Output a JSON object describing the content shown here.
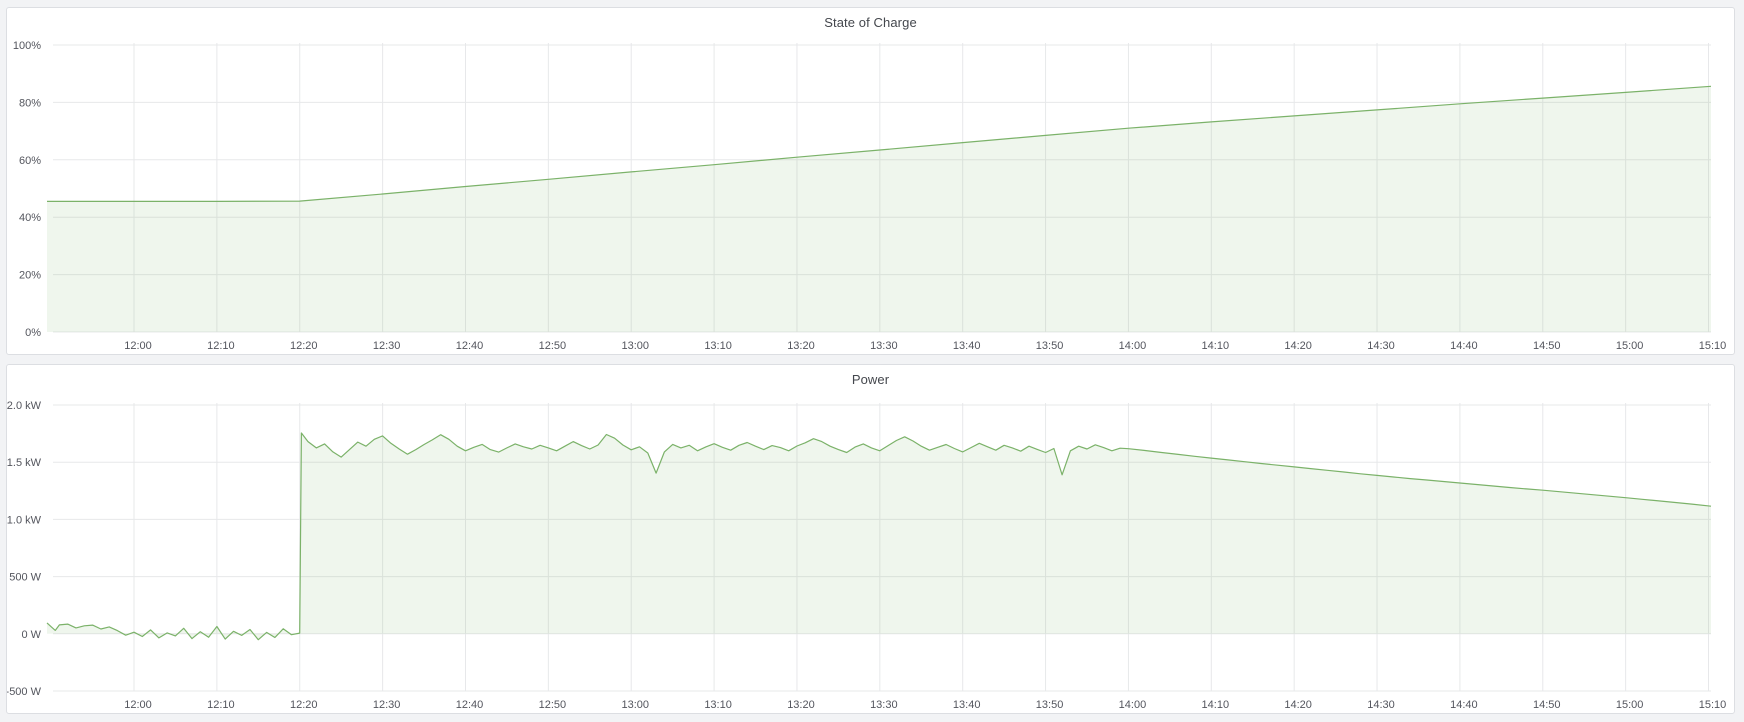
{
  "page": {
    "background_color": "#f2f3f5",
    "panel_background": "#ffffff",
    "panel_border_color": "#dcdee2",
    "grid_color": "#e7e8ea",
    "tick_label_color": "#53555d",
    "title_color": "#44474d",
    "series_line_color": "#7bb269",
    "series_fill_color": "rgba(126,178,109,0.12)"
  },
  "panels": [
    {
      "title": "State of Charge"
    },
    {
      "title": "Power"
    }
  ],
  "chart_data": [
    {
      "type": "area",
      "title": "State of Charge",
      "xlabel": "",
      "ylabel": "",
      "legend": "none",
      "grid": true,
      "ylim": [
        0,
        100
      ],
      "x_range_minutes": [
        709.5,
        910.3
      ],
      "x_ticks": [
        {
          "m": 720,
          "label": "12:00"
        },
        {
          "m": 730,
          "label": "12:10"
        },
        {
          "m": 740,
          "label": "12:20"
        },
        {
          "m": 750,
          "label": "12:30"
        },
        {
          "m": 760,
          "label": "12:40"
        },
        {
          "m": 770,
          "label": "12:50"
        },
        {
          "m": 780,
          "label": "13:00"
        },
        {
          "m": 790,
          "label": "13:10"
        },
        {
          "m": 800,
          "label": "13:20"
        },
        {
          "m": 810,
          "label": "13:30"
        },
        {
          "m": 820,
          "label": "13:40"
        },
        {
          "m": 830,
          "label": "13:50"
        },
        {
          "m": 840,
          "label": "14:00"
        },
        {
          "m": 850,
          "label": "14:10"
        },
        {
          "m": 860,
          "label": "14:20"
        },
        {
          "m": 870,
          "label": "14:30"
        },
        {
          "m": 880,
          "label": "14:40"
        },
        {
          "m": 890,
          "label": "14:50"
        },
        {
          "m": 900,
          "label": "15:00"
        },
        {
          "m": 910,
          "label": "15:10"
        }
      ],
      "y_ticks": [
        {
          "value": 0,
          "label": "0%"
        },
        {
          "value": 20,
          "label": "20%"
        },
        {
          "value": 40,
          "label": "40%"
        },
        {
          "value": 60,
          "label": "60%"
        },
        {
          "value": 80,
          "label": "80%"
        },
        {
          "value": 100,
          "label": "100%"
        }
      ],
      "series": [
        {
          "name": "State of Charge",
          "unit": "%",
          "points": [
            [
              709.5,
              45.5
            ],
            [
              720,
              45.5
            ],
            [
              730,
              45.5
            ],
            [
              740,
              45.6
            ],
            [
              750,
              48.1
            ],
            [
              760,
              50.7
            ],
            [
              770,
              53.2
            ],
            [
              780,
              55.8
            ],
            [
              790,
              58.3
            ],
            [
              800,
              60.9
            ],
            [
              810,
              63.4
            ],
            [
              820,
              66.0
            ],
            [
              830,
              68.5
            ],
            [
              840,
              71.0
            ],
            [
              850,
              73.2
            ],
            [
              860,
              75.3
            ],
            [
              870,
              77.4
            ],
            [
              880,
              79.5
            ],
            [
              890,
              81.5
            ],
            [
              900,
              83.5
            ],
            [
              910.3,
              85.6
            ]
          ]
        }
      ]
    },
    {
      "type": "area",
      "title": "Power",
      "xlabel": "",
      "ylabel": "",
      "legend": "none",
      "grid": true,
      "ylim": [
        -500,
        2000
      ],
      "x_range_minutes": [
        709.5,
        910.3
      ],
      "x_ticks": [
        {
          "m": 720,
          "label": "12:00"
        },
        {
          "m": 730,
          "label": "12:10"
        },
        {
          "m": 740,
          "label": "12:20"
        },
        {
          "m": 750,
          "label": "12:30"
        },
        {
          "m": 760,
          "label": "12:40"
        },
        {
          "m": 770,
          "label": "12:50"
        },
        {
          "m": 780,
          "label": "13:00"
        },
        {
          "m": 790,
          "label": "13:10"
        },
        {
          "m": 800,
          "label": "13:20"
        },
        {
          "m": 810,
          "label": "13:30"
        },
        {
          "m": 820,
          "label": "13:40"
        },
        {
          "m": 830,
          "label": "13:50"
        },
        {
          "m": 840,
          "label": "14:00"
        },
        {
          "m": 850,
          "label": "14:10"
        },
        {
          "m": 860,
          "label": "14:20"
        },
        {
          "m": 870,
          "label": "14:30"
        },
        {
          "m": 880,
          "label": "14:40"
        },
        {
          "m": 890,
          "label": "14:50"
        },
        {
          "m": 900,
          "label": "15:00"
        },
        {
          "m": 910,
          "label": "15:10"
        }
      ],
      "y_ticks": [
        {
          "value": -500,
          "label": "-500 W"
        },
        {
          "value": 0,
          "label": "0 W"
        },
        {
          "value": 500,
          "label": "500 W"
        },
        {
          "value": 1000,
          "label": "1.0 kW"
        },
        {
          "value": 1500,
          "label": "1.5 kW"
        },
        {
          "value": 2000,
          "label": "2.0 kW"
        }
      ],
      "series": [
        {
          "name": "Power",
          "unit": "W",
          "points": [
            [
              709.5,
              95
            ],
            [
              710,
              62
            ],
            [
              710.5,
              30
            ],
            [
              711,
              78
            ],
            [
              712,
              85
            ],
            [
              713,
              52
            ],
            [
              714,
              70
            ],
            [
              715,
              76
            ],
            [
              716,
              42
            ],
            [
              717,
              60
            ],
            [
              718,
              28
            ],
            [
              719,
              -12
            ],
            [
              720,
              14
            ],
            [
              721,
              -24
            ],
            [
              722,
              34
            ],
            [
              723,
              -36
            ],
            [
              724,
              8
            ],
            [
              725,
              -18
            ],
            [
              726,
              48
            ],
            [
              727,
              -42
            ],
            [
              728,
              18
            ],
            [
              729,
              -30
            ],
            [
              730,
              64
            ],
            [
              731,
              -46
            ],
            [
              732,
              22
            ],
            [
              733,
              -14
            ],
            [
              734,
              38
            ],
            [
              735,
              -52
            ],
            [
              736,
              12
            ],
            [
              737,
              -32
            ],
            [
              738,
              44
            ],
            [
              739,
              -8
            ],
            [
              740,
              6
            ],
            [
              740.2,
              1755
            ],
            [
              741,
              1680
            ],
            [
              742,
              1625
            ],
            [
              743,
              1660
            ],
            [
              744,
              1590
            ],
            [
              745,
              1545
            ],
            [
              746,
              1610
            ],
            [
              747,
              1676
            ],
            [
              748,
              1640
            ],
            [
              749,
              1700
            ],
            [
              750,
              1730
            ],
            [
              751,
              1665
            ],
            [
              752,
              1615
            ],
            [
              753,
              1570
            ],
            [
              754,
              1610
            ],
            [
              755,
              1655
            ],
            [
              756,
              1695
            ],
            [
              757,
              1740
            ],
            [
              758,
              1700
            ],
            [
              759,
              1640
            ],
            [
              760,
              1600
            ],
            [
              761,
              1630
            ],
            [
              762,
              1656
            ],
            [
              763,
              1610
            ],
            [
              764,
              1588
            ],
            [
              765,
              1625
            ],
            [
              766,
              1660
            ],
            [
              767,
              1635
            ],
            [
              768,
              1615
            ],
            [
              769,
              1648
            ],
            [
              770,
              1625
            ],
            [
              771,
              1600
            ],
            [
              772,
              1640
            ],
            [
              773,
              1680
            ],
            [
              774,
              1645
            ],
            [
              775,
              1615
            ],
            [
              776,
              1650
            ],
            [
              777,
              1742
            ],
            [
              778,
              1710
            ],
            [
              779,
              1650
            ],
            [
              780,
              1608
            ],
            [
              781,
              1635
            ],
            [
              782,
              1580
            ],
            [
              783,
              1405
            ],
            [
              784,
              1590
            ],
            [
              785,
              1656
            ],
            [
              786,
              1625
            ],
            [
              787,
              1648
            ],
            [
              788,
              1600
            ],
            [
              789,
              1634
            ],
            [
              790,
              1662
            ],
            [
              791,
              1630
            ],
            [
              792,
              1605
            ],
            [
              793,
              1648
            ],
            [
              794,
              1672
            ],
            [
              795,
              1640
            ],
            [
              796,
              1610
            ],
            [
              797,
              1645
            ],
            [
              798,
              1628
            ],
            [
              799,
              1600
            ],
            [
              800,
              1642
            ],
            [
              801,
              1670
            ],
            [
              802,
              1705
            ],
            [
              803,
              1680
            ],
            [
              804,
              1640
            ],
            [
              805,
              1610
            ],
            [
              806,
              1585
            ],
            [
              807,
              1632
            ],
            [
              808,
              1660
            ],
            [
              809,
              1625
            ],
            [
              810,
              1600
            ],
            [
              811,
              1645
            ],
            [
              812,
              1690
            ],
            [
              813,
              1722
            ],
            [
              814,
              1685
            ],
            [
              815,
              1640
            ],
            [
              816,
              1605
            ],
            [
              817,
              1630
            ],
            [
              818,
              1655
            ],
            [
              819,
              1620
            ],
            [
              820,
              1590
            ],
            [
              821,
              1628
            ],
            [
              822,
              1665
            ],
            [
              823,
              1635
            ],
            [
              824,
              1605
            ],
            [
              825,
              1648
            ],
            [
              826,
              1625
            ],
            [
              827,
              1596
            ],
            [
              828,
              1640
            ],
            [
              829,
              1612
            ],
            [
              830,
              1585
            ],
            [
              831,
              1620
            ],
            [
              832,
              1390
            ],
            [
              833,
              1600
            ],
            [
              834,
              1640
            ],
            [
              835,
              1615
            ],
            [
              836,
              1652
            ],
            [
              837,
              1628
            ],
            [
              838,
              1600
            ],
            [
              839,
              1622
            ],
            [
              840,
              1618
            ],
            [
              842,
              1602
            ],
            [
              844,
              1585
            ],
            [
              846,
              1568
            ],
            [
              848,
              1552
            ],
            [
              850,
              1536
            ],
            [
              852,
              1520
            ],
            [
              854,
              1504
            ],
            [
              856,
              1489
            ],
            [
              858,
              1474
            ],
            [
              860,
              1459
            ],
            [
              862,
              1444
            ],
            [
              864,
              1429
            ],
            [
              866,
              1414
            ],
            [
              868,
              1399
            ],
            [
              870,
              1385
            ],
            [
              872,
              1371
            ],
            [
              874,
              1357
            ],
            [
              876,
              1344
            ],
            [
              878,
              1331
            ],
            [
              880,
              1318
            ],
            [
              882,
              1305
            ],
            [
              884,
              1292
            ],
            [
              886,
              1279
            ],
            [
              888,
              1267
            ],
            [
              890,
              1255
            ],
            [
              892,
              1242
            ],
            [
              894,
              1229
            ],
            [
              896,
              1216
            ],
            [
              898,
              1203
            ],
            [
              900,
              1190
            ],
            [
              902,
              1176
            ],
            [
              904,
              1162
            ],
            [
              906,
              1148
            ],
            [
              908,
              1134
            ],
            [
              910.3,
              1115
            ]
          ]
        }
      ]
    }
  ]
}
